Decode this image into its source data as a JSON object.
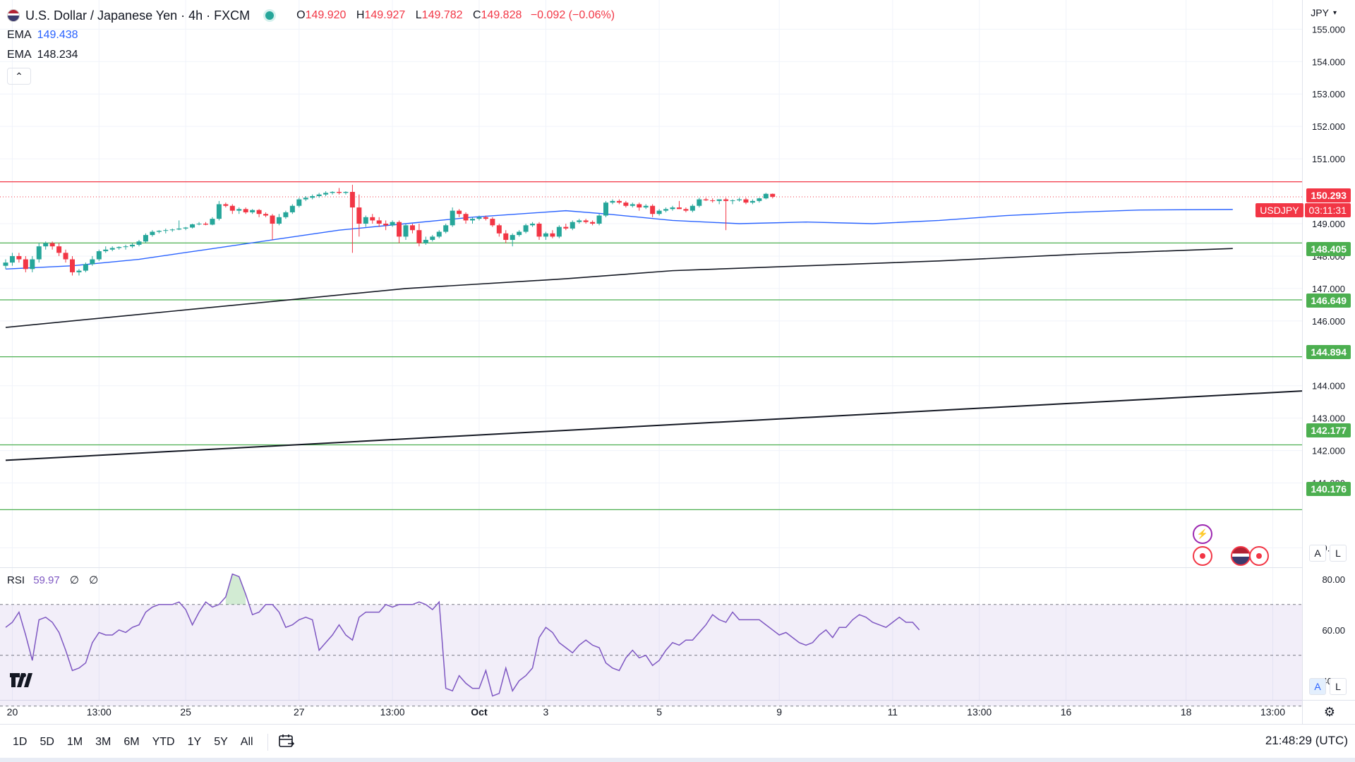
{
  "header": {
    "symbol_title": "U.S. Dollar / Japanese Yen · 4h · FXCM",
    "open_label": "O",
    "open": "149.920",
    "high_label": "H",
    "high": "149.927",
    "low_label": "L",
    "low": "149.782",
    "close_label": "C",
    "close": "149.828",
    "change": "−0.092 (−0.06%)"
  },
  "indicators": {
    "ema1_name": "EMA",
    "ema1_value": "149.438",
    "ema2_name": "EMA",
    "ema2_value": "148.234",
    "collapse_icon": "chevron-up-icon"
  },
  "rsi": {
    "name": "RSI",
    "value": "59.97",
    "na1": "∅",
    "na2": "∅"
  },
  "currency": "JPY",
  "symbol_tag": "USDJPY",
  "countdown": "03:11:31",
  "colors": {
    "up": "#26a69a",
    "down": "#f23645",
    "ema_fast": "#2962ff",
    "ema_slow": "#131722",
    "resistance": "#f23645",
    "support": "#4caf50",
    "rsi_line": "#7e57c2"
  },
  "toolbar": {
    "ranges": [
      "1D",
      "5D",
      "1M",
      "3M",
      "6M",
      "YTD",
      "1Y",
      "5Y",
      "All"
    ],
    "calendar_icon": "calendar-range-icon",
    "clock": "21:48:29 (UTC)"
  },
  "scale_buttons": {
    "auto": "A",
    "log": "L"
  },
  "chart_data": {
    "type": "candlestick",
    "price_axis": {
      "ticks": [
        "155.000",
        "154.000",
        "153.000",
        "152.000",
        "151.000",
        "149.000",
        "148.000",
        "147.000",
        "146.000",
        "144.000",
        "143.000",
        "142.000",
        "141.000",
        "139.000"
      ],
      "ylim": [
        138.4,
        155.9
      ]
    },
    "time_axis": {
      "ticks": [
        {
          "label": "20",
          "i": 1
        },
        {
          "label": "13:00",
          "i": 14
        },
        {
          "label": "25",
          "i": 27
        },
        {
          "label": "27",
          "i": 44
        },
        {
          "label": "13:00",
          "i": 58
        },
        {
          "label": "Oct",
          "i": 71
        },
        {
          "label": "3",
          "i": 81
        },
        {
          "label": "5",
          "i": 98
        },
        {
          "label": "9",
          "i": 116
        },
        {
          "label": "11",
          "i": 133
        },
        {
          "label": "13:00",
          "i": 146
        },
        {
          "label": "16",
          "i": 159
        },
        {
          "label": "18",
          "i": 177
        },
        {
          "label": "13:00",
          "i": 190
        }
      ]
    },
    "levels": [
      {
        "value": 150.293,
        "label": "150.293",
        "kind": "resistance"
      },
      {
        "value": 148.405,
        "label": "148.405",
        "kind": "support"
      },
      {
        "value": 146.649,
        "label": "146.649",
        "kind": "support"
      },
      {
        "value": 144.894,
        "label": "144.894",
        "kind": "support"
      },
      {
        "value": 142.177,
        "label": "142.177",
        "kind": "support"
      },
      {
        "value": 140.176,
        "label": "140.176",
        "kind": "support"
      }
    ],
    "last_price": 149.828,
    "trendline": {
      "x": [
        0,
        200
      ],
      "y": [
        141.7,
        143.9
      ]
    },
    "ema_fast": {
      "x": [
        0,
        10,
        20,
        30,
        40,
        50,
        60,
        70,
        84,
        90,
        100,
        110,
        120,
        130,
        140,
        150,
        160,
        170,
        184
      ],
      "y": [
        147.6,
        147.7,
        147.9,
        148.2,
        148.5,
        148.8,
        149.0,
        149.2,
        149.4,
        149.3,
        149.1,
        149.0,
        149.05,
        149.0,
        149.1,
        149.25,
        149.35,
        149.42,
        149.438
      ]
    },
    "ema_slow": {
      "x": [
        0,
        20,
        40,
        60,
        84,
        100,
        120,
        140,
        160,
        184
      ],
      "y": [
        145.8,
        146.2,
        146.6,
        147.0,
        147.3,
        147.55,
        147.7,
        147.85,
        148.05,
        148.234
      ]
    },
    "candles": [
      [
        147.7,
        147.9,
        147.6,
        147.8
      ],
      [
        147.8,
        148.1,
        147.7,
        148.0
      ],
      [
        148.0,
        148.1,
        147.8,
        147.9
      ],
      [
        147.9,
        148.0,
        147.5,
        147.6
      ],
      [
        147.6,
        148.0,
        147.5,
        147.9
      ],
      [
        147.9,
        148.4,
        147.8,
        148.3
      ],
      [
        148.3,
        148.45,
        148.2,
        148.4
      ],
      [
        148.4,
        148.45,
        148.2,
        148.3
      ],
      [
        148.3,
        148.4,
        148.0,
        148.1
      ],
      [
        148.1,
        148.2,
        147.8,
        147.9
      ],
      [
        147.9,
        148.0,
        147.4,
        147.5
      ],
      [
        147.5,
        147.6,
        147.4,
        147.55
      ],
      [
        147.55,
        147.8,
        147.5,
        147.75
      ],
      [
        147.75,
        148.0,
        147.7,
        147.9
      ],
      [
        147.9,
        148.2,
        147.85,
        148.15
      ],
      [
        148.15,
        148.3,
        148.1,
        148.2
      ],
      [
        148.2,
        148.3,
        148.15,
        148.25
      ],
      [
        148.25,
        148.3,
        148.2,
        148.28
      ],
      [
        148.28,
        148.35,
        148.2,
        148.3
      ],
      [
        148.3,
        148.4,
        148.25,
        148.35
      ],
      [
        148.35,
        148.5,
        148.3,
        148.45
      ],
      [
        148.45,
        148.7,
        148.4,
        148.65
      ],
      [
        148.65,
        148.8,
        148.6,
        148.75
      ],
      [
        148.75,
        148.8,
        148.7,
        148.78
      ],
      [
        148.78,
        148.85,
        148.7,
        148.8
      ],
      [
        148.8,
        148.85,
        148.75,
        148.82
      ],
      [
        148.82,
        149.1,
        148.8,
        148.85
      ],
      [
        148.85,
        148.9,
        148.8,
        148.88
      ],
      [
        148.88,
        149.0,
        148.85,
        148.98
      ],
      [
        148.98,
        149.05,
        148.95,
        149.0
      ],
      [
        149.0,
        149.05,
        148.95,
        148.97
      ],
      [
        148.97,
        149.2,
        148.95,
        149.15
      ],
      [
        149.15,
        149.7,
        149.1,
        149.6
      ],
      [
        149.6,
        149.65,
        149.5,
        149.55
      ],
      [
        149.55,
        149.6,
        149.3,
        149.4
      ],
      [
        149.4,
        149.5,
        149.3,
        149.45
      ],
      [
        149.45,
        149.5,
        149.3,
        149.35
      ],
      [
        149.35,
        149.45,
        149.3,
        149.42
      ],
      [
        149.42,
        149.45,
        149.2,
        149.3
      ],
      [
        149.3,
        149.35,
        149.2,
        149.25
      ],
      [
        149.25,
        149.3,
        148.5,
        149.0
      ],
      [
        149.0,
        149.3,
        148.95,
        149.2
      ],
      [
        149.2,
        149.4,
        149.15,
        149.35
      ],
      [
        149.35,
        149.6,
        149.3,
        149.55
      ],
      [
        149.55,
        149.8,
        149.5,
        149.75
      ],
      [
        149.75,
        149.85,
        149.7,
        149.8
      ],
      [
        149.8,
        149.9,
        149.75,
        149.85
      ],
      [
        149.85,
        149.95,
        149.8,
        149.9
      ],
      [
        149.9,
        150.0,
        149.85,
        149.95
      ],
      [
        149.95,
        150.0,
        149.9,
        149.98
      ],
      [
        149.98,
        150.1,
        149.9,
        149.95
      ],
      [
        149.95,
        150.0,
        149.9,
        149.98
      ],
      [
        149.98,
        150.2,
        148.1,
        149.5
      ],
      [
        149.5,
        149.9,
        148.6,
        149.0
      ],
      [
        149.0,
        149.25,
        148.9,
        149.2
      ],
      [
        149.2,
        149.3,
        149.0,
        149.1
      ],
      [
        149.1,
        149.2,
        148.9,
        149.0
      ],
      [
        149.0,
        149.1,
        148.8,
        148.95
      ],
      [
        148.95,
        149.1,
        148.9,
        149.05
      ],
      [
        149.05,
        149.1,
        148.4,
        148.6
      ],
      [
        148.6,
        149.0,
        148.5,
        148.95
      ],
      [
        148.95,
        149.0,
        148.7,
        148.8
      ],
      [
        148.8,
        149.0,
        148.3,
        148.4
      ],
      [
        148.4,
        148.6,
        148.35,
        148.5
      ],
      [
        148.5,
        148.65,
        148.45,
        148.6
      ],
      [
        148.6,
        148.8,
        148.55,
        148.75
      ],
      [
        148.75,
        149.0,
        148.7,
        148.95
      ],
      [
        148.95,
        149.5,
        148.9,
        149.4
      ],
      [
        149.4,
        149.45,
        149.2,
        149.3
      ],
      [
        149.3,
        149.35,
        149.0,
        149.1
      ],
      [
        149.1,
        149.2,
        149.0,
        149.15
      ],
      [
        149.15,
        149.25,
        149.1,
        149.2
      ],
      [
        149.2,
        149.25,
        149.1,
        149.15
      ],
      [
        149.15,
        149.2,
        148.9,
        148.95
      ],
      [
        148.95,
        149.0,
        148.6,
        148.7
      ],
      [
        148.7,
        148.8,
        148.4,
        148.5
      ],
      [
        148.5,
        148.7,
        148.3,
        148.65
      ],
      [
        148.65,
        148.8,
        148.6,
        148.75
      ],
      [
        148.75,
        149.0,
        148.7,
        148.95
      ],
      [
        148.95,
        149.05,
        148.9,
        149.0
      ],
      [
        149.0,
        149.05,
        148.5,
        148.6
      ],
      [
        148.6,
        148.75,
        148.5,
        148.7
      ],
      [
        148.7,
        148.8,
        148.55,
        148.6
      ],
      [
        148.6,
        148.95,
        148.55,
        148.9
      ],
      [
        148.9,
        149.0,
        148.8,
        148.85
      ],
      [
        148.85,
        149.1,
        148.8,
        149.05
      ],
      [
        149.05,
        149.15,
        149.0,
        149.1
      ],
      [
        149.1,
        149.15,
        149.0,
        149.05
      ],
      [
        149.05,
        149.1,
        148.95,
        149.0
      ],
      [
        149.0,
        149.3,
        148.95,
        149.25
      ],
      [
        149.25,
        149.7,
        149.2,
        149.65
      ],
      [
        149.65,
        149.75,
        149.6,
        149.7
      ],
      [
        149.7,
        149.75,
        149.6,
        149.65
      ],
      [
        149.65,
        149.7,
        149.5,
        149.55
      ],
      [
        149.55,
        149.65,
        149.5,
        149.6
      ],
      [
        149.6,
        149.65,
        149.4,
        149.5
      ],
      [
        149.5,
        149.6,
        149.45,
        149.55
      ],
      [
        149.55,
        149.6,
        149.2,
        149.3
      ],
      [
        149.3,
        149.45,
        149.25,
        149.4
      ],
      [
        149.4,
        149.5,
        149.35,
        149.45
      ],
      [
        149.45,
        149.55,
        149.4,
        149.5
      ],
      [
        149.5,
        149.7,
        149.45,
        149.45
      ],
      [
        149.45,
        149.5,
        149.35,
        149.4
      ],
      [
        149.4,
        149.6,
        149.35,
        149.55
      ],
      [
        149.55,
        149.8,
        149.5,
        149.75
      ],
      [
        149.75,
        149.8,
        149.7,
        149.72
      ],
      [
        149.72,
        149.78,
        149.65,
        149.7
      ],
      [
        149.7,
        149.75,
        149.6,
        149.75
      ],
      [
        149.75,
        149.8,
        148.8,
        149.7
      ],
      [
        149.7,
        149.75,
        149.6,
        149.72
      ],
      [
        149.72,
        149.8,
        149.68,
        149.75
      ],
      [
        149.75,
        149.8,
        149.6,
        149.65
      ],
      [
        149.65,
        149.75,
        149.6,
        149.7
      ],
      [
        149.7,
        149.8,
        149.65,
        149.78
      ],
      [
        149.78,
        149.95,
        149.75,
        149.92
      ],
      [
        149.92,
        149.93,
        149.78,
        149.83
      ]
    ],
    "rsi": {
      "ylim": [
        33,
        83
      ],
      "bands": [
        70,
        50,
        30
      ],
      "ticks": [
        "80.00",
        "60.00",
        "40.00"
      ],
      "values": [
        61,
        63,
        67,
        58,
        48,
        64,
        65,
        63,
        59,
        52,
        44,
        45,
        47,
        55,
        59,
        58,
        58,
        60,
        59,
        61,
        62,
        67,
        69,
        70,
        70,
        70,
        71,
        68,
        62,
        67,
        71,
        69,
        70,
        73,
        82,
        81,
        74,
        66,
        67,
        70,
        70,
        67,
        61,
        62,
        64,
        65,
        64,
        52,
        55,
        58,
        62,
        58,
        56,
        65,
        67,
        67,
        67,
        70,
        69,
        70,
        70,
        70,
        71,
        70,
        68,
        71,
        37,
        36,
        42,
        39,
        37,
        37,
        44,
        34,
        35,
        45,
        36,
        40,
        42,
        45,
        57,
        61,
        59,
        55,
        53,
        51,
        54,
        56,
        54,
        53,
        47,
        45,
        44,
        49,
        52,
        49,
        50,
        46,
        48,
        52,
        55,
        54,
        56,
        56,
        59,
        62,
        66,
        64,
        63,
        67,
        64,
        64,
        64,
        64,
        62,
        60,
        58,
        59,
        57,
        55,
        54,
        55,
        58,
        60,
        57,
        61,
        61,
        64,
        66,
        65,
        63,
        62,
        61,
        63,
        65,
        63,
        63,
        60
      ]
    }
  }
}
